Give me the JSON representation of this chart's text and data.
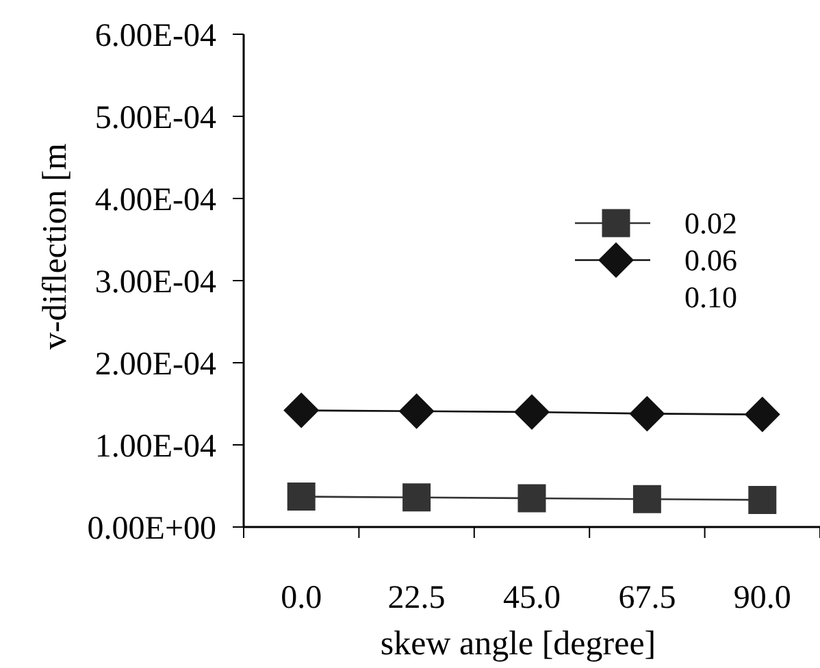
{
  "chart_data": {
    "type": "line",
    "xlabel": "skew angle [degree]",
    "ylabel": "v-diflection [m",
    "categories": [
      "0.0",
      "22.5",
      "45.0",
      "67.5",
      "90.0"
    ],
    "ylim": [
      0,
      0.0006
    ],
    "yticks": [
      {
        "value": 0,
        "label": "0.00E+00"
      },
      {
        "value": 0.0001,
        "label": "1.00E-04"
      },
      {
        "value": 0.0002,
        "label": "2.00E-04"
      },
      {
        "value": 0.0003,
        "label": "3.00E-04"
      },
      {
        "value": 0.0004,
        "label": "4.00E-04"
      },
      {
        "value": 0.0005,
        "label": "5.00E-04"
      },
      {
        "value": 0.0006,
        "label": "6.00E-04"
      }
    ],
    "grid": false,
    "legend": "right",
    "series": [
      {
        "name": "0.02",
        "color": "#333333",
        "marker": "square",
        "values": [
          3.7e-05,
          3.6e-05,
          3.5e-05,
          3.4e-05,
          3.3e-05
        ]
      },
      {
        "name": "0.06",
        "color": "#111111",
        "marker": "diamond",
        "values": [
          0.000142,
          0.000141,
          0.00014,
          0.000138,
          0.000137
        ]
      },
      {
        "name": "0.10",
        "marker": "none",
        "values": [
          null,
          null,
          null,
          null,
          null
        ]
      }
    ]
  }
}
